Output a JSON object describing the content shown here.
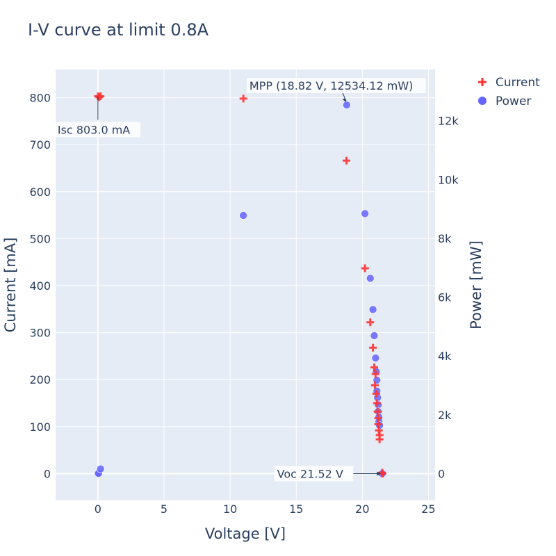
{
  "chart_data": {
    "type": "scatter",
    "title": "I-V curve at limit 0.8A",
    "xlabel": "Voltage [V]",
    "ylabel": "Current [mA]",
    "y2label": "Power [mW]",
    "xlim": [
      -3.2,
      25.5
    ],
    "ylim": [
      -57,
      860
    ],
    "y2lim": [
      -910,
      13740
    ],
    "x_ticks": [
      0,
      5,
      10,
      15,
      20,
      25
    ],
    "y_ticks": [
      0,
      100,
      200,
      300,
      400,
      500,
      600,
      700,
      800
    ],
    "y2_ticks": [
      0,
      2000,
      4000,
      6000,
      8000,
      10000,
      12000
    ],
    "y2_tick_labels": [
      "0",
      "2k",
      "4k",
      "6k",
      "8k",
      "10k",
      "12k"
    ],
    "grid": true,
    "legend_position": "top-right",
    "colors": {
      "current": "#ff3232",
      "power": "#6464ff",
      "plot_bg": "#e5ecf6",
      "text": "#2a3f5f"
    },
    "series": [
      {
        "name": "Current",
        "marker": "cross",
        "axis": "y",
        "points": [
          [
            0.0,
            803
          ],
          [
            0.1,
            801
          ],
          [
            0.2,
            803
          ],
          [
            11.0,
            798
          ],
          [
            18.8,
            666
          ],
          [
            20.2,
            437
          ],
          [
            20.6,
            322
          ],
          [
            20.8,
            268
          ],
          [
            20.9,
            226
          ],
          [
            21.0,
            212
          ],
          [
            20.95,
            188
          ],
          [
            21.05,
            170
          ],
          [
            21.1,
            150
          ],
          [
            21.15,
            132
          ],
          [
            21.2,
            118
          ],
          [
            21.2,
            105
          ],
          [
            21.25,
            92
          ],
          [
            21.3,
            82
          ],
          [
            21.3,
            73
          ],
          [
            21.5,
            2
          ],
          [
            21.52,
            0
          ]
        ]
      },
      {
        "name": "Power",
        "marker": "circle",
        "axis": "y2",
        "points": [
          [
            0.0,
            0
          ],
          [
            0.05,
            10
          ],
          [
            0.2,
            160
          ],
          [
            11.0,
            8780
          ],
          [
            18.82,
            12534
          ],
          [
            20.2,
            8840
          ],
          [
            20.6,
            6640
          ],
          [
            20.8,
            5580
          ],
          [
            20.9,
            4690
          ],
          [
            21.0,
            3930
          ],
          [
            21.05,
            3470
          ],
          [
            21.1,
            3180
          ],
          [
            21.1,
            2810
          ],
          [
            21.15,
            2580
          ],
          [
            21.2,
            2340
          ],
          [
            21.2,
            2110
          ],
          [
            21.25,
            1920
          ],
          [
            21.25,
            1770
          ],
          [
            21.3,
            1640
          ],
          [
            21.5,
            0
          ]
        ]
      }
    ],
    "annotations": [
      {
        "text": "MPP (18.82 V, 12534.12 mW)",
        "x": 18.82,
        "y": 12534,
        "axis": "y2"
      },
      {
        "text": "Isc 803.0 mA",
        "x": 0.0,
        "y": 803,
        "axis": "y"
      },
      {
        "text": "Voc 21.52 V",
        "x": 21.52,
        "y": 0,
        "axis": "y"
      }
    ]
  }
}
